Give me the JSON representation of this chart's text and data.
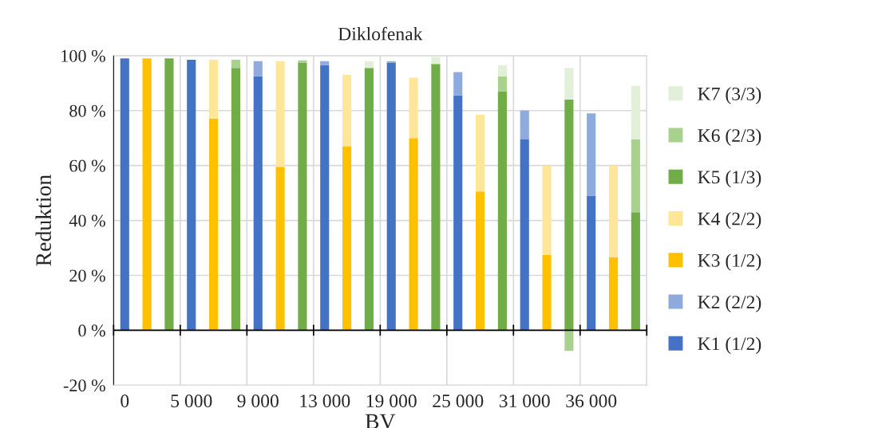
{
  "chart_data": {
    "type": "bar",
    "stacked": true,
    "title": "Diklofenak",
    "xlabel": "BV",
    "ylabel": "Reduktion",
    "categories": [
      "0",
      null,
      null,
      "5 000",
      null,
      null,
      "9 000",
      null,
      null,
      "13 000",
      null,
      null,
      "19 000",
      null,
      null,
      "25 000",
      null,
      null,
      "31 000",
      null,
      null,
      "36 000",
      null,
      null
    ],
    "series": [
      {
        "name": "K1 (1/2)",
        "color": "#4472c4",
        "values": [
          99,
          null,
          null,
          98.5,
          null,
          null,
          92.5,
          null,
          null,
          96.5,
          null,
          null,
          97.5,
          null,
          null,
          85.5,
          null,
          null,
          69.5,
          null,
          null,
          49,
          null,
          null
        ]
      },
      {
        "name": "K2 (2/2)",
        "color": "#8faadc",
        "values": [
          0,
          null,
          null,
          0,
          null,
          null,
          5.5,
          null,
          null,
          1.5,
          null,
          null,
          0.5,
          null,
          null,
          8.5,
          null,
          null,
          10.5,
          null,
          null,
          30,
          null,
          null
        ]
      },
      {
        "name": "K3 (1/2)",
        "color": "#ffc000",
        "values": [
          null,
          99,
          null,
          null,
          77,
          null,
          null,
          59.5,
          null,
          null,
          67,
          null,
          null,
          70,
          null,
          null,
          50.5,
          null,
          null,
          27.5,
          null,
          null,
          26.5,
          null
        ]
      },
      {
        "name": "K4 (2/2)",
        "color": "#ffe699",
        "values": [
          null,
          0,
          null,
          null,
          21.5,
          null,
          null,
          38.5,
          null,
          null,
          26,
          null,
          null,
          22,
          null,
          null,
          28,
          null,
          null,
          32.5,
          null,
          null,
          33.5,
          null
        ]
      },
      {
        "name": "K5 (1/3)",
        "color": "#70ad47",
        "values": [
          null,
          null,
          99,
          null,
          null,
          95.5,
          null,
          null,
          97.5,
          null,
          null,
          95.5,
          null,
          null,
          97,
          null,
          null,
          87,
          null,
          null,
          84,
          null,
          null,
          43
        ]
      },
      {
        "name": "K6 (2/3)",
        "color": "#a9d18e",
        "values": [
          null,
          null,
          0,
          null,
          null,
          3,
          null,
          null,
          0.8,
          null,
          null,
          0,
          null,
          null,
          0,
          null,
          null,
          5.5,
          null,
          null,
          -7.5,
          null,
          null,
          26.5
        ]
      },
      {
        "name": "K7 (3/3)",
        "color": "#e2f0d9",
        "values": [
          null,
          null,
          0,
          null,
          null,
          0,
          null,
          null,
          0,
          null,
          null,
          2.5,
          null,
          null,
          2.5,
          null,
          null,
          4,
          null,
          null,
          11.5,
          null,
          null,
          19.5
        ]
      }
    ],
    "ylim": [
      -20,
      100
    ],
    "yticks": [
      {
        "value": -20,
        "label": "-20 %"
      },
      {
        "value": 0,
        "label": "0 %"
      },
      {
        "value": 20,
        "label": "20 %"
      },
      {
        "value": 40,
        "label": "40 %"
      },
      {
        "value": 60,
        "label": "60 %"
      },
      {
        "value": 80,
        "label": "80 %"
      },
      {
        "value": 100,
        "label": "100 %"
      }
    ],
    "grid": true,
    "legend": "right"
  }
}
